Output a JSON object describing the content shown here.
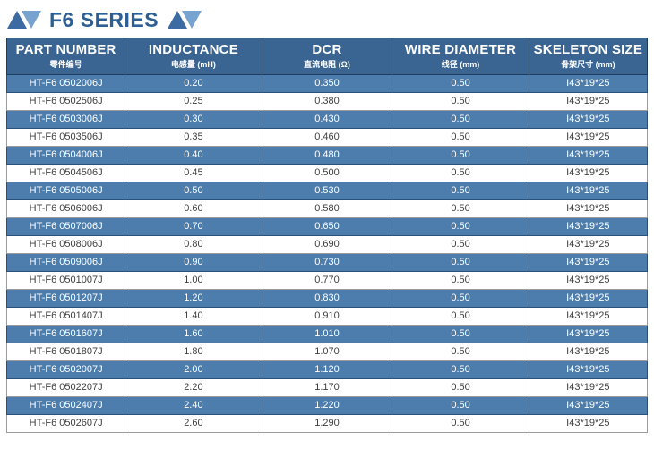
{
  "page": {
    "title": "F6 SERIES"
  },
  "colors": {
    "title_text": "#2b5f96",
    "triangle_dark": "#3c6ba3",
    "triangle_light": "#78a3d1",
    "header_bg": "#3a6492",
    "header_border": "#1d3d5e",
    "alt_row_bg": "#4d7dac",
    "alt_row_border": "#2c5179",
    "grid_border": "#9c9c9c",
    "body_text": "#3f3f3f"
  },
  "table": {
    "columns": [
      {
        "en": "PART NUMBER",
        "cn": "零件编号"
      },
      {
        "en": "INDUCTANCE",
        "cn": "电感量 (mH)"
      },
      {
        "en": "DCR",
        "cn": "直流电阻 (Ω)"
      },
      {
        "en": "WIRE DIAMETER",
        "cn": "线径 (mm)"
      },
      {
        "en": "SKELETON SIZE",
        "cn": "骨架尺寸 (mm)"
      }
    ],
    "rows": [
      [
        "HT-F6 0502006J",
        "0.20",
        "0.350",
        "0.50",
        "I43*19*25"
      ],
      [
        "HT-F6 0502506J",
        "0.25",
        "0.380",
        "0.50",
        "I43*19*25"
      ],
      [
        "HT-F6 0503006J",
        "0.30",
        "0.430",
        "0.50",
        "I43*19*25"
      ],
      [
        "HT-F6 0503506J",
        "0.35",
        "0.460",
        "0.50",
        "I43*19*25"
      ],
      [
        "HT-F6 0504006J",
        "0.40",
        "0.480",
        "0.50",
        "I43*19*25"
      ],
      [
        "HT-F6 0504506J",
        "0.45",
        "0.500",
        "0.50",
        "I43*19*25"
      ],
      [
        "HT-F6 0505006J",
        "0.50",
        "0.530",
        "0.50",
        "I43*19*25"
      ],
      [
        "HT-F6 0506006J",
        "0.60",
        "0.580",
        "0.50",
        "I43*19*25"
      ],
      [
        "HT-F6 0507006J",
        "0.70",
        "0.650",
        "0.50",
        "I43*19*25"
      ],
      [
        "HT-F6 0508006J",
        "0.80",
        "0.690",
        "0.50",
        "I43*19*25"
      ],
      [
        "HT-F6 0509006J",
        "0.90",
        "0.730",
        "0.50",
        "I43*19*25"
      ],
      [
        "HT-F6 0501007J",
        "1.00",
        "0.770",
        "0.50",
        "I43*19*25"
      ],
      [
        "HT-F6 0501207J",
        "1.20",
        "0.830",
        "0.50",
        "I43*19*25"
      ],
      [
        "HT-F6 0501407J",
        "1.40",
        "0.910",
        "0.50",
        "I43*19*25"
      ],
      [
        "HT-F6 0501607J",
        "1.60",
        "1.010",
        "0.50",
        "I43*19*25"
      ],
      [
        "HT-F6 0501807J",
        "1.80",
        "1.070",
        "0.50",
        "I43*19*25"
      ],
      [
        "HT-F6 0502007J",
        "2.00",
        "1.120",
        "0.50",
        "I43*19*25"
      ],
      [
        "HT-F6 0502207J",
        "2.20",
        "1.170",
        "0.50",
        "I43*19*25"
      ],
      [
        "HT-F6 0502407J",
        "2.40",
        "1.220",
        "0.50",
        "I43*19*25"
      ],
      [
        "HT-F6 0502607J",
        "2.60",
        "1.290",
        "0.50",
        "I43*19*25"
      ]
    ]
  }
}
